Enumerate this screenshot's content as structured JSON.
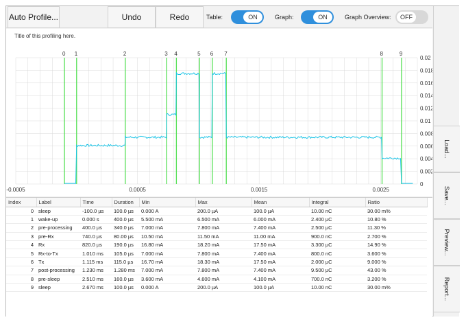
{
  "toolbar": {
    "auto_profile": "Auto Profile...",
    "undo": "Undo",
    "redo": "Redo",
    "table_label": "Table:",
    "table_state": "ON",
    "graph_label": "Graph:",
    "graph_state": "ON",
    "overview_label": "Graph Overview:",
    "overview_state": "OFF"
  },
  "side": {
    "load": "Load...",
    "save": "Save...",
    "preview": "Preview...",
    "report": "Report..."
  },
  "colors": {
    "accent": "#2f8fdc",
    "trace": "#19c3e6",
    "marker": "#55e055",
    "grid": "#d9d9d9"
  },
  "chart_data": {
    "type": "line",
    "title": "Title of this profiling here.",
    "xlim": [
      -0.0005,
      0.0028
    ],
    "ylim": [
      0,
      0.02
    ],
    "x_ticks": [
      "-0.0005",
      "0.0005",
      "0.0015",
      "0.0025"
    ],
    "x_tick_values": [
      -0.0005,
      0.0005,
      0.0015,
      0.0025
    ],
    "y_ticks": [
      "0",
      "0.002",
      "0.004",
      "0.006",
      "0.008",
      "0.01",
      "0.012",
      "0.014",
      "0.016",
      "0.018",
      "0.02"
    ],
    "markers": [
      {
        "label": "0",
        "x": -0.0001
      },
      {
        "label": "1",
        "x": 0.0
      },
      {
        "label": "2",
        "x": 0.0004
      },
      {
        "label": "3",
        "x": 0.00074
      },
      {
        "label": "4",
        "x": 0.00082
      },
      {
        "label": "5",
        "x": 0.00101
      },
      {
        "label": "6",
        "x": 0.001115
      },
      {
        "label": "7",
        "x": 0.00123
      },
      {
        "label": "8",
        "x": 0.00251
      },
      {
        "label": "9",
        "x": 0.00267
      }
    ],
    "series": [
      {
        "x": [
          -0.0001,
          0.0,
          0.0004,
          0.00074,
          0.00082,
          0.00101,
          0.001115,
          0.00123,
          0.00251,
          0.00267,
          0.00277
        ],
        "y": [
          0.0001,
          0.0061,
          0.0074,
          0.011,
          0.0175,
          0.0074,
          0.0175,
          0.0074,
          0.0041,
          0.0001,
          0.0001
        ]
      }
    ]
  },
  "table": {
    "headers": [
      "Index",
      "Label",
      "Time",
      "Duration",
      "Min",
      "Max",
      "Mean",
      "Integral",
      "Ratio"
    ],
    "rows": [
      [
        "0",
        "sleep",
        "-100.0 µs",
        "100.0 µs",
        "0.000 A",
        "200.0 µA",
        "100.0 µA",
        "10.00 nC",
        "30.00 m%"
      ],
      [
        "1",
        "wake-up",
        "0.000 s",
        "400.0 µs",
        "5.500 mA",
        "6.500 mA",
        "6.000 mA",
        "2.400 µC",
        "10.80 %"
      ],
      [
        "2",
        "pre-processing",
        "400.0 µs",
        "340.0 µs",
        "7.000 mA",
        "7.800 mA",
        "7.400 mA",
        "2.500 µC",
        "11.30 %"
      ],
      [
        "3",
        "pre-Rx",
        "740.0 µs",
        "80.00 µs",
        "10.50 mA",
        "11.50 mA",
        "11.00 mA",
        "900.0 nC",
        "2.700 %"
      ],
      [
        "4",
        "Rx",
        "820.0 µs",
        "190.0 µs",
        "16.80 mA",
        "18.20 mA",
        "17.50 mA",
        "3.300 µC",
        "14.90 %"
      ],
      [
        "5",
        "Rx-to-Tx",
        "1.010 ms",
        "105.0 µs",
        "7.000 mA",
        "7.800 mA",
        "7.400 mA",
        "800.0 nC",
        "3.600 %"
      ],
      [
        "6",
        "Tx",
        "1.115 ms",
        "115.0 µs",
        "16.70 mA",
        "18.30 mA",
        "17.50 mA",
        "2.000 µC",
        "9.000 %"
      ],
      [
        "7",
        "post-processing",
        "1.230 ms",
        "1.280 ms",
        "7.000 mA",
        "7.800 mA",
        "7.400 mA",
        "9.500 µC",
        "43.00 %"
      ],
      [
        "8",
        "pre-sleep",
        "2.510 ms",
        "160.0 µs",
        "3.600 mA",
        "4.600 mA",
        "4.100 mA",
        "700.0 nC",
        "3.200 %"
      ],
      [
        "9",
        "sleep",
        "2.670 ms",
        "100.0 µs",
        "0.000 A",
        "200.0 µA",
        "100.0 µA",
        "10.00 nC",
        "30.00 m%"
      ]
    ]
  }
}
